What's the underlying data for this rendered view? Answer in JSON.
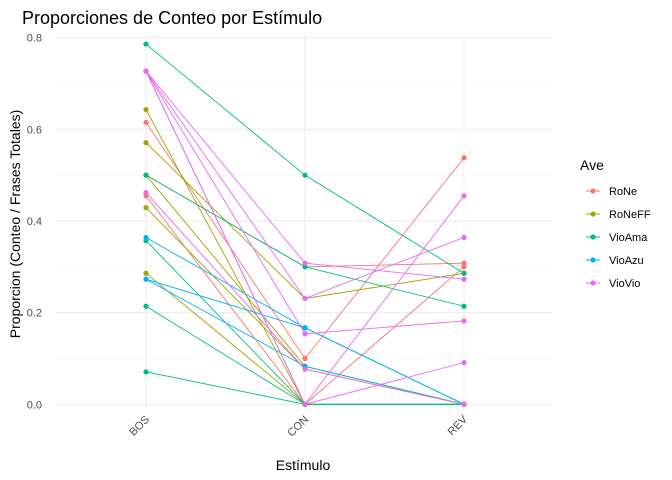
{
  "chart_data": {
    "type": "line",
    "title": "Proporciones de Conteo por Estímulo",
    "xlabel": "Estímulo",
    "ylabel": "Proporcion (Conteo / Frases Totales)",
    "categories": [
      "BOS",
      "CON",
      "REV"
    ],
    "ylim": [
      -0.008,
      0.808
    ],
    "yticks": [
      "0.0",
      "0.2",
      "0.4",
      "0.6",
      "0.8"
    ],
    "grid": true,
    "legend": {
      "title": "Ave",
      "position": "right",
      "entries": [
        "RoNe",
        "RoNeFF",
        "VioAma",
        "VioAzu",
        "VioVio"
      ]
    },
    "colors": {
      "RoNe": "#F8766D",
      "RoNeFF": "#A3A500",
      "VioAma": "#00BF7D",
      "VioAzu": "#00B0F6",
      "VioVio": "#E76BF3"
    },
    "series": [
      {
        "group": "RoNe",
        "values": [
          0.615,
          0.1,
          0.538
        ]
      },
      {
        "group": "RoNe",
        "values": [
          0.455,
          0.0,
          0.3
        ]
      },
      {
        "group": "RoNe",
        "values": [
          0.5,
          0.3,
          0.308
        ]
      },
      {
        "group": "RoNeFF",
        "values": [
          0.643,
          0.0,
          0.0
        ]
      },
      {
        "group": "RoNeFF",
        "values": [
          0.571,
          0.231,
          0.286
        ]
      },
      {
        "group": "RoNeFF",
        "values": [
          0.5,
          0.083,
          0.0
        ]
      },
      {
        "group": "RoNeFF",
        "values": [
          0.429,
          0.077,
          0.0
        ]
      },
      {
        "group": "RoNeFF",
        "values": [
          0.286,
          0.0,
          0.0
        ]
      },
      {
        "group": "VioAma",
        "values": [
          0.786,
          0.5,
          0.286
        ]
      },
      {
        "group": "VioAma",
        "values": [
          0.5,
          0.3,
          0.214
        ]
      },
      {
        "group": "VioAma",
        "values": [
          0.357,
          0.0,
          0.0
        ]
      },
      {
        "group": "VioAma",
        "values": [
          0.214,
          0.0,
          0.0
        ]
      },
      {
        "group": "VioAma",
        "values": [
          0.071,
          0.0,
          0.0
        ]
      },
      {
        "group": "VioAzu",
        "values": [
          0.364,
          0.167,
          0.0
        ]
      },
      {
        "group": "VioAzu",
        "values": [
          0.273,
          0.167,
          0.0
        ]
      },
      {
        "group": "VioAzu",
        "values": [
          0.273,
          0.083,
          0.0
        ]
      },
      {
        "group": "VioVio",
        "values": [
          0.727,
          0.308,
          0.273
        ]
      },
      {
        "group": "VioVio",
        "values": [
          0.727,
          0.231,
          0.364
        ]
      },
      {
        "group": "VioVio",
        "values": [
          0.727,
          0.154,
          0.182
        ]
      },
      {
        "group": "VioVio",
        "values": [
          0.727,
          0.0,
          0.455
        ]
      },
      {
        "group": "VioVio",
        "values": [
          0.727,
          0.0,
          0.091
        ]
      },
      {
        "group": "VioVio",
        "values": [
          0.462,
          0.077,
          0.0
        ]
      }
    ]
  }
}
